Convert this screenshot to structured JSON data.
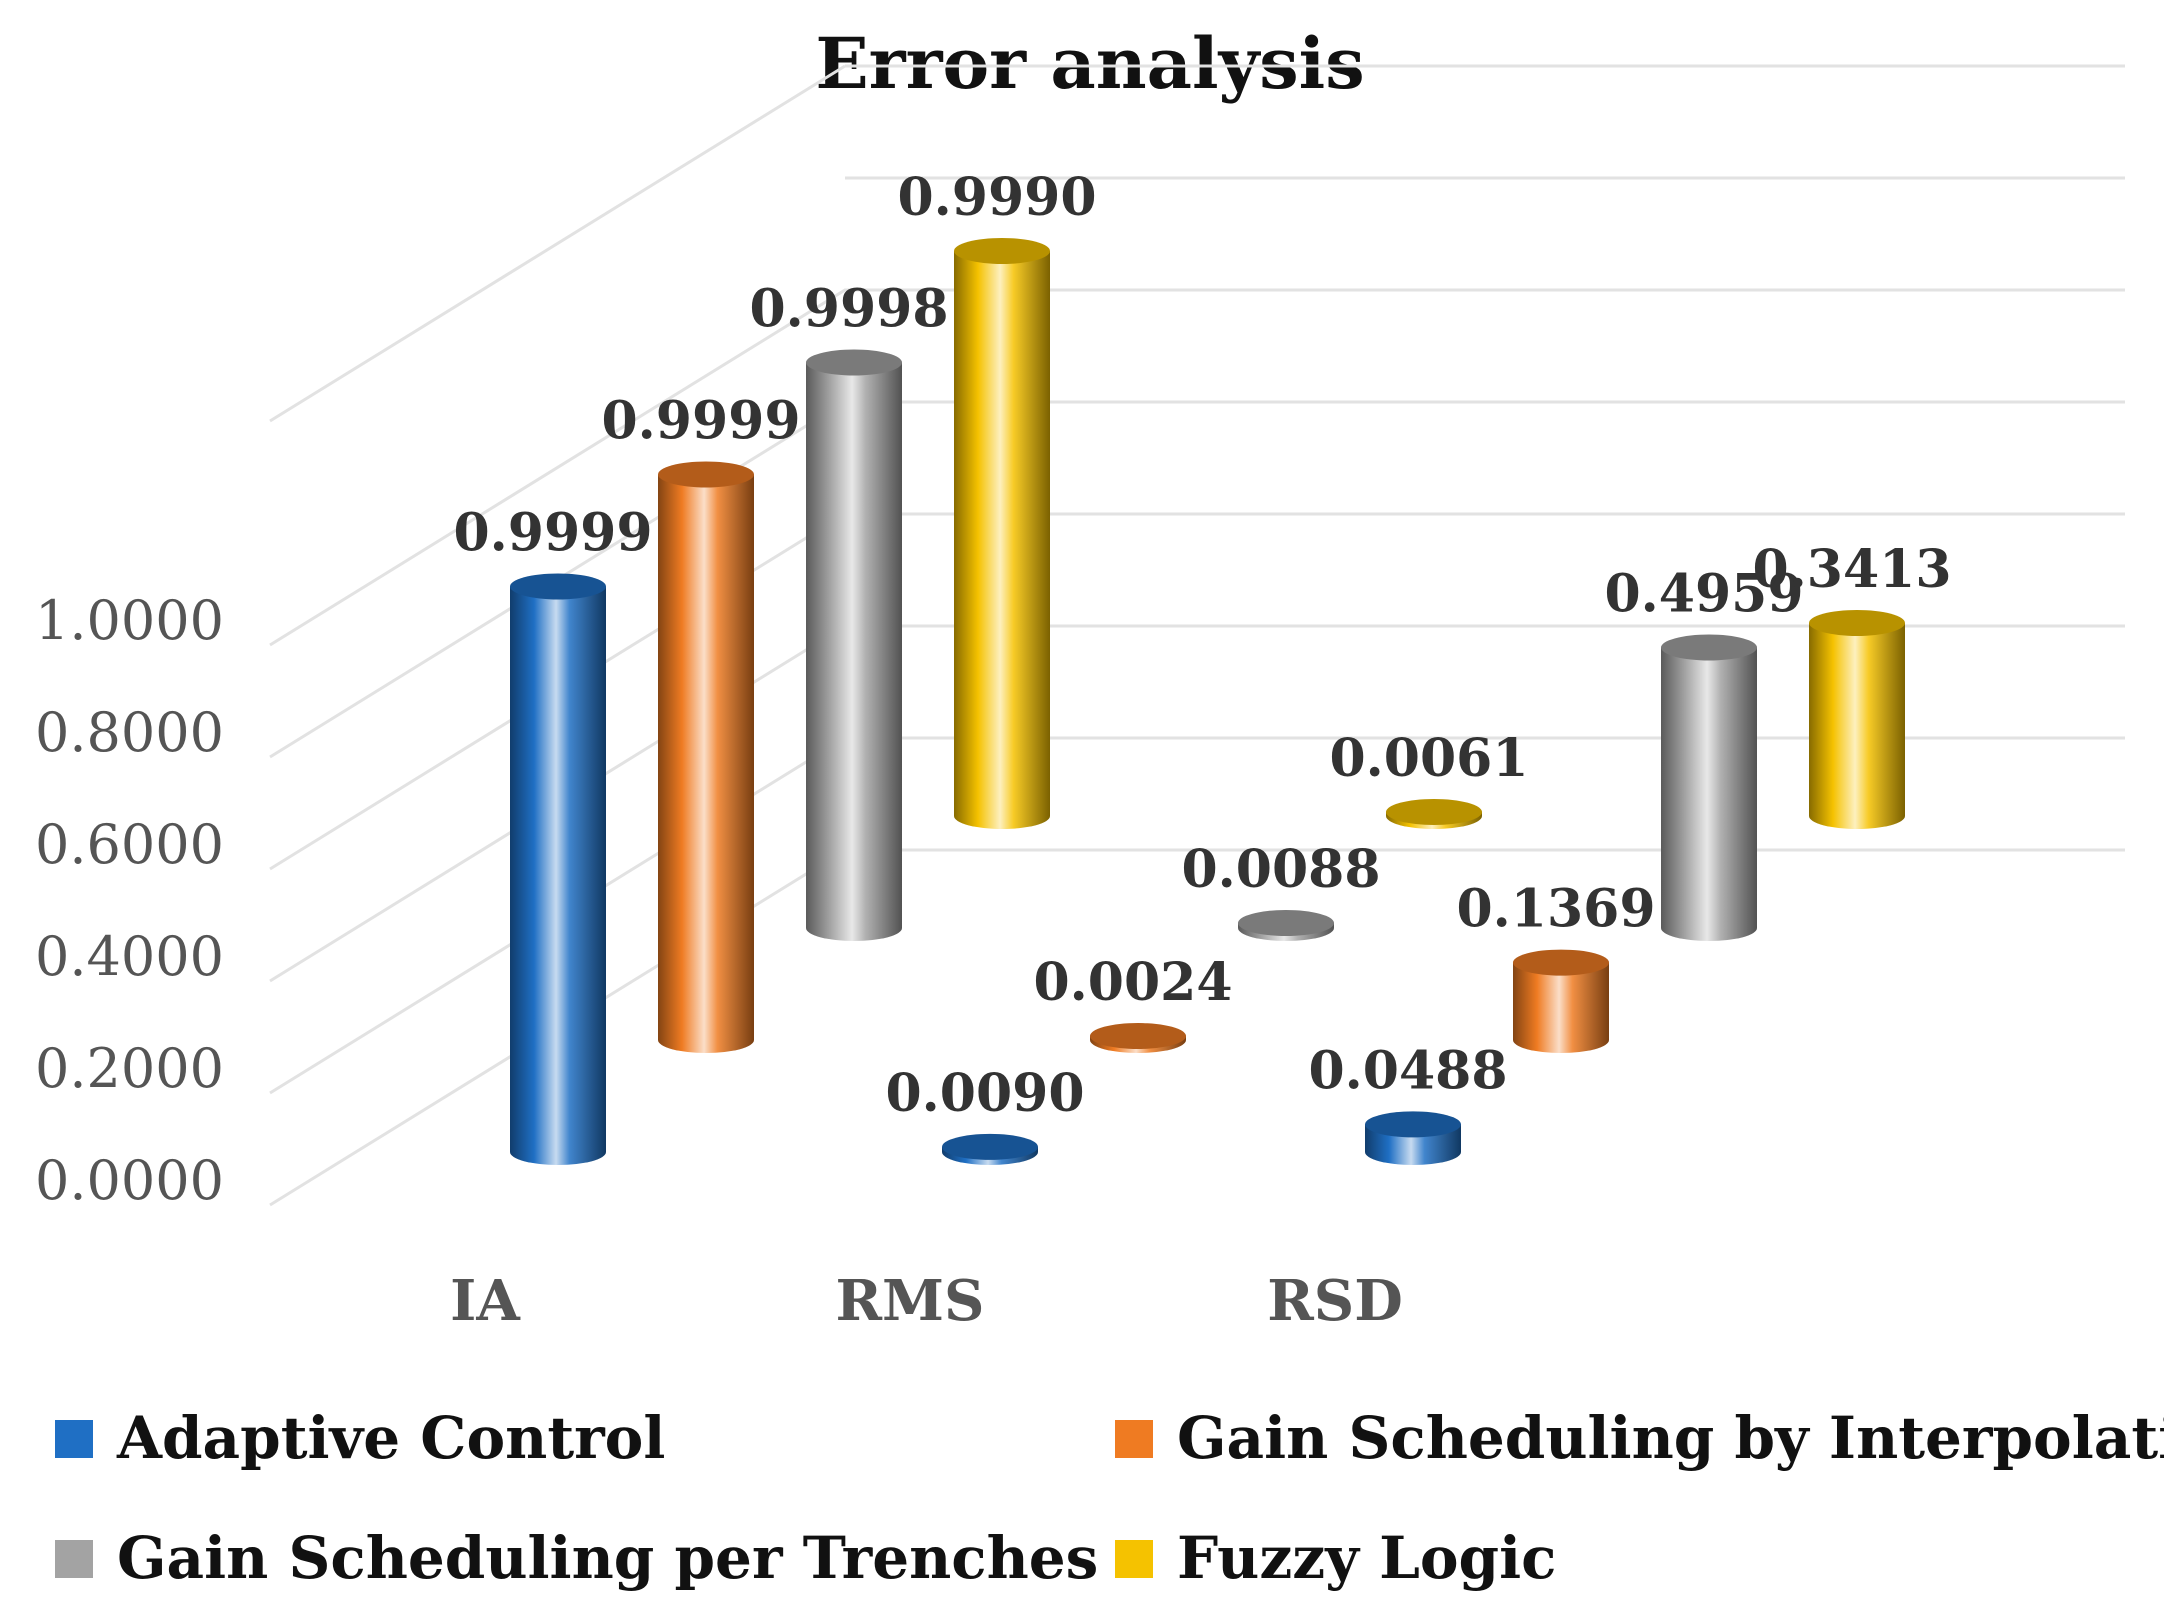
{
  "chart_data": {
    "type": "bar",
    "style": "3d-cylinder",
    "title": "Error analysis",
    "categories": [
      "IA",
      "RMS",
      "RSD"
    ],
    "y_ticks": [
      "0.0000",
      "0.2000",
      "0.4000",
      "0.6000",
      "0.8000",
      "1.0000"
    ],
    "ylim": [
      0,
      1.0
    ],
    "legend_position": "bottom",
    "series": [
      {
        "name": "Adaptive Control",
        "color": "#1f6fc4",
        "values": [
          0.9999,
          0.009,
          0.0488
        ],
        "labels": [
          "0.9999",
          "0.0090",
          "0.0488"
        ]
      },
      {
        "name": "Gain Scheduling by Interpolation",
        "color": "#ef7b22",
        "values": [
          0.9999,
          0.0024,
          0.1369
        ],
        "labels": [
          "0.9999",
          "0.0024",
          "0.1369"
        ]
      },
      {
        "name": "Gain Scheduling per Trenches",
        "color": "#a3a3a3",
        "values": [
          0.9998,
          0.0088,
          0.4959
        ],
        "labels": [
          "0.9998",
          "0.0088",
          "0.4959"
        ]
      },
      {
        "name": "Fuzzy Logic",
        "color": "#f5c200",
        "values": [
          0.999,
          0.0061,
          0.3413
        ],
        "labels": [
          "0.9990",
          "0.0061",
          "0.3413"
        ]
      }
    ]
  }
}
